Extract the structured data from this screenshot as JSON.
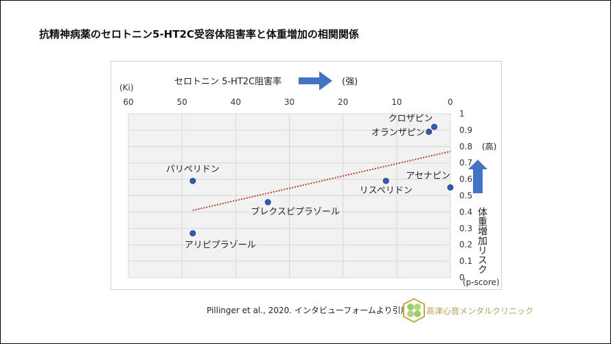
{
  "title": "抗精神病薬のセロトニン5-HT2C受容体阻害率と体重増加の相関関係",
  "citation": "Pillinger et al., 2020. インタビューフォームより引用作成",
  "clinic_name": "高津心音メンタルクリニック",
  "chart_data": {
    "type": "scatter",
    "x_unit": "(Ki)",
    "x_label": "セロトニン 5-HT2C阻害率",
    "x_direction_label": "(強)",
    "y_unit": "(p-score)",
    "y_label": "体重増加リスク",
    "y_direction_label": "(高)",
    "xlim": [
      60,
      0
    ],
    "ylim": [
      0,
      1
    ],
    "x_reversed": true,
    "x_ticks": [
      "60",
      "50",
      "40",
      "30",
      "20",
      "10",
      "0"
    ],
    "y_ticks": [
      "0",
      "0.1",
      "0.2",
      "0.3",
      "0.4",
      "0.5",
      "0.6",
      "0.7",
      "0.8",
      "0.9",
      "1"
    ],
    "grid": true,
    "points": [
      {
        "label": "クロザピン",
        "x": 3,
        "y": 0.92
      },
      {
        "label": "オランザピン",
        "x": 4,
        "y": 0.89
      },
      {
        "label": "パリペリドン",
        "x": 48,
        "y": 0.59
      },
      {
        "label": "リスペリドン",
        "x": 12,
        "y": 0.59
      },
      {
        "label": "アセナピン",
        "x": 0,
        "y": 0.55
      },
      {
        "label": "ブレクスピプラゾール",
        "x": 34,
        "y": 0.46
      },
      {
        "label": "アリピプラゾール",
        "x": 48,
        "y": 0.27
      }
    ],
    "trendline": {
      "x": [
        48,
        0
      ],
      "y": [
        0.41,
        0.77
      ],
      "style": "dotted",
      "color": "#c0392b"
    },
    "point_color": "#2f5fb3",
    "arrow_color": "#4472c4"
  }
}
